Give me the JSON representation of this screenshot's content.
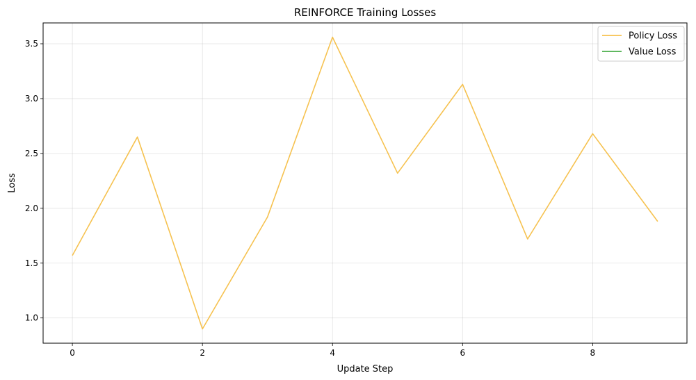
{
  "chart_data": {
    "type": "line",
    "title": "REINFORCE Training Losses",
    "xlabel": "Update Step",
    "ylabel": "Loss",
    "xlim": [
      -0.45,
      9.45
    ],
    "ylim": [
      0.77,
      3.69
    ],
    "x_ticks": [
      0,
      2,
      4,
      6,
      8
    ],
    "x_tick_labels": [
      "0",
      "2",
      "4",
      "6",
      "8"
    ],
    "y_ticks": [
      1.0,
      1.5,
      2.0,
      2.5,
      3.0,
      3.5
    ],
    "y_tick_labels": [
      "1.0",
      "1.5",
      "2.0",
      "2.5",
      "3.0",
      "3.5"
    ],
    "grid": true,
    "legend_position": "top-right",
    "series": [
      {
        "name": "Policy Loss",
        "color": "#F5B731",
        "x": [
          0,
          1,
          2,
          3,
          4,
          5,
          6,
          7,
          8,
          9
        ],
        "values": [
          1.57,
          2.65,
          0.9,
          1.92,
          3.56,
          2.32,
          3.13,
          1.72,
          2.68,
          1.88
        ]
      },
      {
        "name": "Value Loss",
        "color": "#2CA02C",
        "x": [],
        "values": []
      }
    ]
  }
}
